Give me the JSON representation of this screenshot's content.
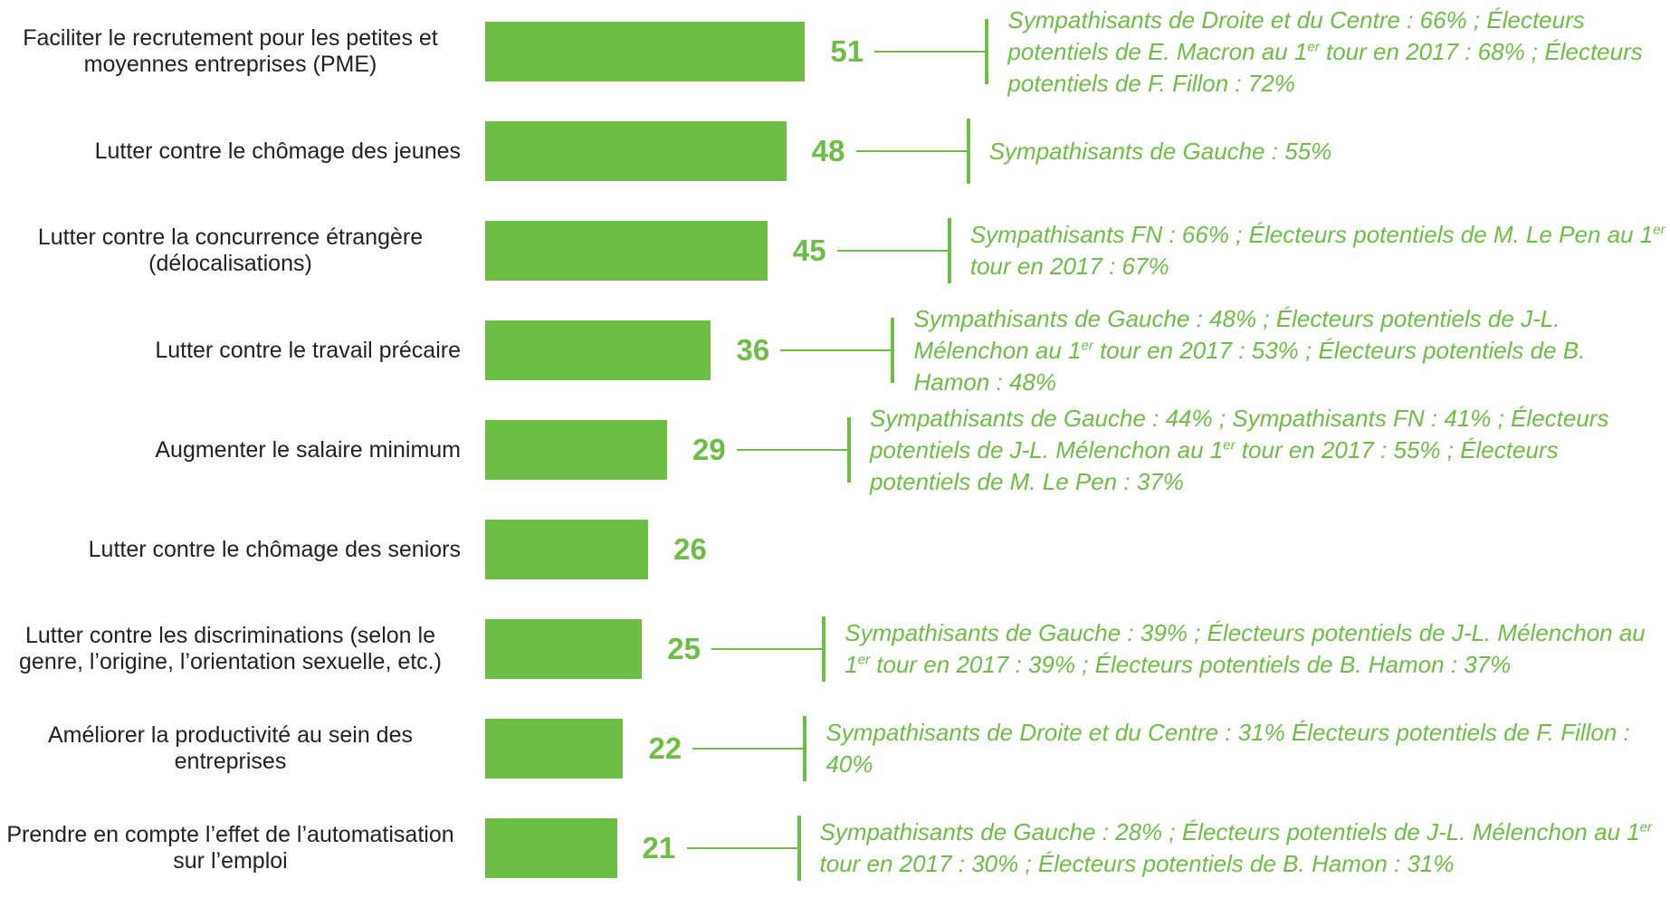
{
  "chart_data": {
    "type": "bar",
    "orientation": "horizontal",
    "color": "#6dbe45",
    "categories": [
      "Faciliter le recrutement pour les petites et moyennes entreprises (PME)",
      "Lutter contre le chômage des jeunes",
      "Lutter contre la concurrence étrangère (délocalisations)",
      "Lutter contre le travail précaire",
      "Augmenter le salaire minimum",
      "Lutter contre le chômage des seniors",
      "Lutter contre les discriminations (selon le genre, l’origine, l’orientation sexuelle, etc.)",
      "Améliorer la productivité au sein des entreprises",
      "Prendre en compte l’effet de l’automatisation sur l’emploi"
    ],
    "values": [
      51,
      48,
      45,
      36,
      29,
      26,
      25,
      22,
      21
    ],
    "annotations": [
      [
        "Sympathisants de Droite et du Centre : 66% ; Électeurs potentiels de E. Macron au 1",
        "er",
        " tour en 2017 : 68% ; Électeurs potentiels de F. Fillon : 72%"
      ],
      [
        "Sympathisants de Gauche : 55%"
      ],
      [
        "Sympathisants FN : 66%  ; Électeurs potentiels de M. Le Pen au 1",
        "er",
        " tour en 2017 : 67%"
      ],
      [
        "Sympathisants de Gauche : 48% ; Électeurs potentiels de J-L. Mélenchon au 1",
        "er",
        " tour en 2017 : 53% ; Électeurs potentiels de B. Hamon : 48%"
      ],
      [
        "Sympathisants de Gauche : 44% ; Sympathisants FN : 41% ; Électeurs potentiels de J-L. Mélenchon au 1",
        "er",
        " tour en 2017 : 55% ; Électeurs potentiels de M. Le Pen : 37%"
      ],
      null,
      [
        "Sympathisants de Gauche : 39% ; Électeurs potentiels de J-L. Mélenchon au 1",
        "er",
        " tour en 2017 : 39% ; Électeurs potentiels de B. Hamon : 37%"
      ],
      [
        "Sympathisants de Droite et du Centre : 31% Électeurs potentiels de F. Fillon : 40%"
      ],
      [
        "Sympathisants de Gauche : 28% ; Électeurs potentiels de J-L. Mélenchon au 1",
        "er",
        " tour en 2017 : 30% ; Électeurs potentiels de B. Hamon : 31%"
      ]
    ]
  }
}
